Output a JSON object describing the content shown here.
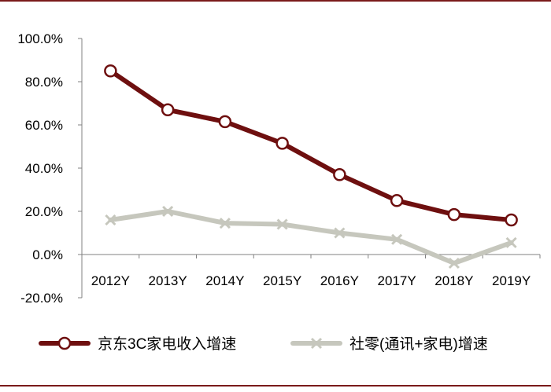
{
  "chart_data": {
    "type": "line",
    "categories": [
      "2012Y",
      "2013Y",
      "2014Y",
      "2015Y",
      "2016Y",
      "2017Y",
      "2018Y",
      "2019Y"
    ],
    "y_ticks": [
      "100.0%",
      "80.0%",
      "60.0%",
      "40.0%",
      "20.0%",
      "0.0%",
      "-20.0%"
    ],
    "ylim": [
      -20,
      100
    ],
    "y_unit": "%",
    "grid": false,
    "legend_position": "bottom",
    "series": [
      {
        "name": "京东3C家电收入增速",
        "values": [
          85,
          67,
          61.5,
          51.5,
          37,
          25,
          18.5,
          16
        ],
        "color": "#6e0f0f",
        "marker": "circle"
      },
      {
        "name": "社零(通讯+家电)增速",
        "values": [
          16,
          20,
          14.5,
          14,
          10,
          7,
          -4,
          5.5
        ],
        "color": "#c6c7bd",
        "marker": "x"
      }
    ]
  }
}
